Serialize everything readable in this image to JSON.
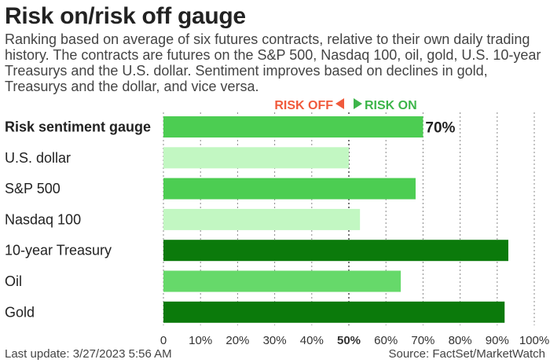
{
  "header": {
    "title": "Risk on/risk off gauge",
    "subtitle": "Ranking based on average of six futures contracts, relative to their own daily trading history. The contracts are futures on the S&P 500, Nasdaq 100, oil, gold, U.S. 10-year Treasurys and the U.S. dollar. Sentiment improves based on declines in gold, Treasurys and the dollar, and vice versa."
  },
  "legend": {
    "risk_off": "RISK OFF",
    "risk_on": "RISK ON",
    "risk_off_color": "#f05a3c",
    "risk_on_color": "#3db54a"
  },
  "footer": {
    "last_update": "Last update: 3/27/2023 5:56 AM",
    "source": "Source: FactSet/MarketWatch"
  },
  "chart_data": {
    "type": "bar",
    "orientation": "horizontal",
    "categories": [
      "Risk sentiment gauge",
      "U.S. dollar",
      "S&P 500",
      "Nasdaq 100",
      "10-year Treasury",
      "Oil",
      "Gold"
    ],
    "values": [
      70,
      50,
      68,
      53,
      93,
      64,
      92
    ],
    "colors": [
      "#4ccd52",
      "#c2f7c2",
      "#4ccd52",
      "#c2f7c2",
      "#0b7a0b",
      "#66d96a",
      "#0b7a0b"
    ],
    "bold_categories": [
      "Risk sentiment gauge"
    ],
    "data_labels": [
      {
        "category": "Risk sentiment gauge",
        "text": "70%"
      }
    ],
    "ticks": [
      "0",
      "10%",
      "20%",
      "30%",
      "40%",
      "50%",
      "60%",
      "70%",
      "80%",
      "90%",
      "100%"
    ],
    "bold_ticks": [
      "50%"
    ],
    "xlim": [
      0,
      100
    ],
    "grid": "vertical dotted",
    "grid_emphasis": 50
  }
}
